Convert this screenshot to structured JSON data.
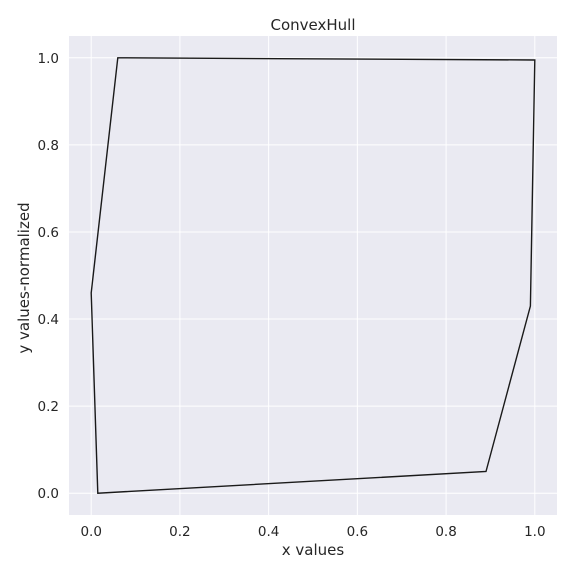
{
  "chart_data": {
    "type": "line",
    "title": "ConvexHull",
    "xlabel": "x values",
    "ylabel": "y values-normalized",
    "xlim": [
      -0.05,
      1.05
    ],
    "ylim": [
      -0.05,
      1.05
    ],
    "xticks": [
      0.0,
      0.2,
      0.4,
      0.6,
      0.8,
      1.0
    ],
    "yticks": [
      0.0,
      0.2,
      0.4,
      0.6,
      0.8,
      1.0
    ],
    "xtick_labels": [
      "0.0",
      "0.2",
      "0.4",
      "0.6",
      "0.8",
      "1.0"
    ],
    "ytick_labels": [
      "0.0",
      "0.2",
      "0.4",
      "0.6",
      "0.8",
      "1.0"
    ],
    "grid": true,
    "colors": {
      "background": "#eaeaf2",
      "grid": "#ffffff",
      "line": "#1a1a1a"
    },
    "series": [
      {
        "x": [
          0.0,
          0.06,
          1.0,
          0.99,
          0.89,
          0.015,
          0.0
        ],
        "y": [
          0.46,
          1.0,
          0.995,
          0.43,
          0.05,
          0.0,
          0.46
        ]
      }
    ]
  }
}
